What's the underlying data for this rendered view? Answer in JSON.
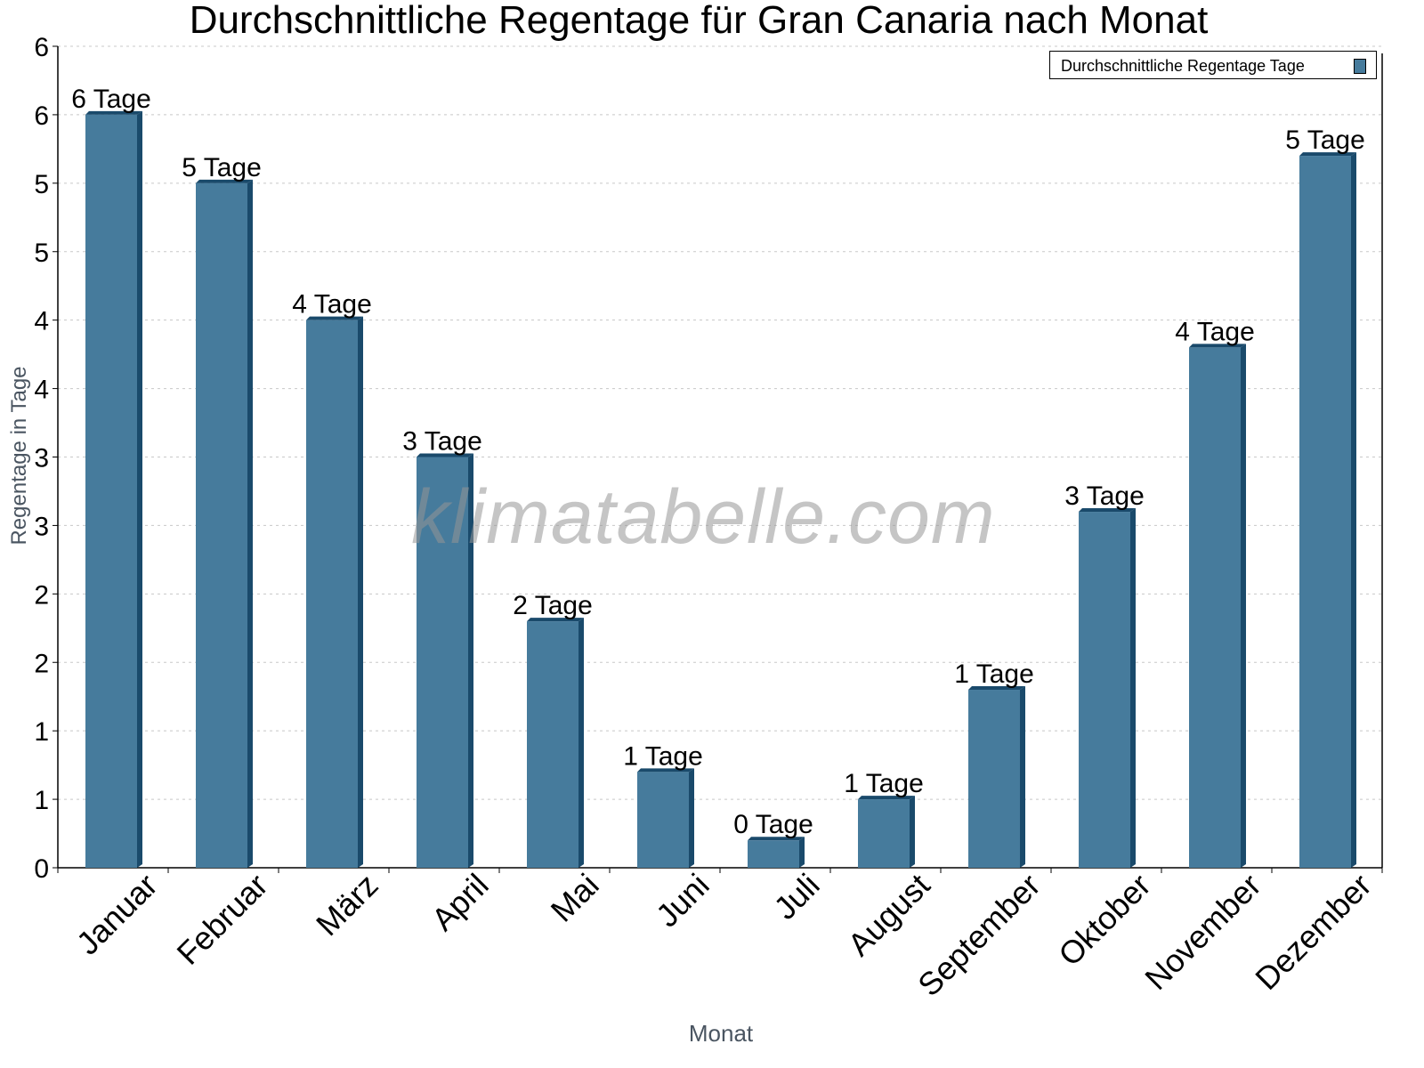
{
  "title": "Durchschnittliche Regentage für Gran Canaria nach Monat",
  "watermark": "klimatabelle.com",
  "legend": {
    "label": "Durchschnittliche Regentage Tage",
    "color": "#467b9c"
  },
  "axes": {
    "ylabel": "Regentage in Tage",
    "xlabel": "Monat",
    "ytick_labels": [
      "0",
      "1",
      "1",
      "2",
      "2",
      "3",
      "3",
      "4",
      "4",
      "5",
      "5",
      "6",
      "6"
    ]
  },
  "colors": {
    "bar_front": "#467b9c",
    "bar_side": "#1a4a6b",
    "grid": "#c8c8c8",
    "axis": "#000000"
  },
  "chart_data": {
    "type": "bar",
    "title": "Durchschnittliche Regentage für Gran Canaria nach Monat",
    "xlabel": "Monat",
    "ylabel": "Regentage in Tage",
    "categories": [
      "Januar",
      "Februar",
      "März",
      "April",
      "Mai",
      "Juni",
      "Juli",
      "August",
      "September",
      "Oktober",
      "November",
      "Dezember"
    ],
    "series": [
      {
        "name": "Durchschnittliche Regentage Tage",
        "values": [
          5.5,
          5.0,
          4.0,
          3.0,
          1.8,
          0.7,
          0.2,
          0.5,
          1.3,
          2.6,
          3.8,
          5.2
        ],
        "data_labels": [
          "6 Tage",
          "5 Tage",
          "4 Tage",
          "3 Tage",
          "2 Tage",
          "1 Tage",
          "0 Tage",
          "1 Tage",
          "1 Tage",
          "3 Tage",
          "4 Tage",
          "5 Tage"
        ]
      }
    ],
    "ylim": [
      0,
      6
    ],
    "ytick_step": 0.5,
    "grid": true,
    "legend_position": "top-right"
  }
}
